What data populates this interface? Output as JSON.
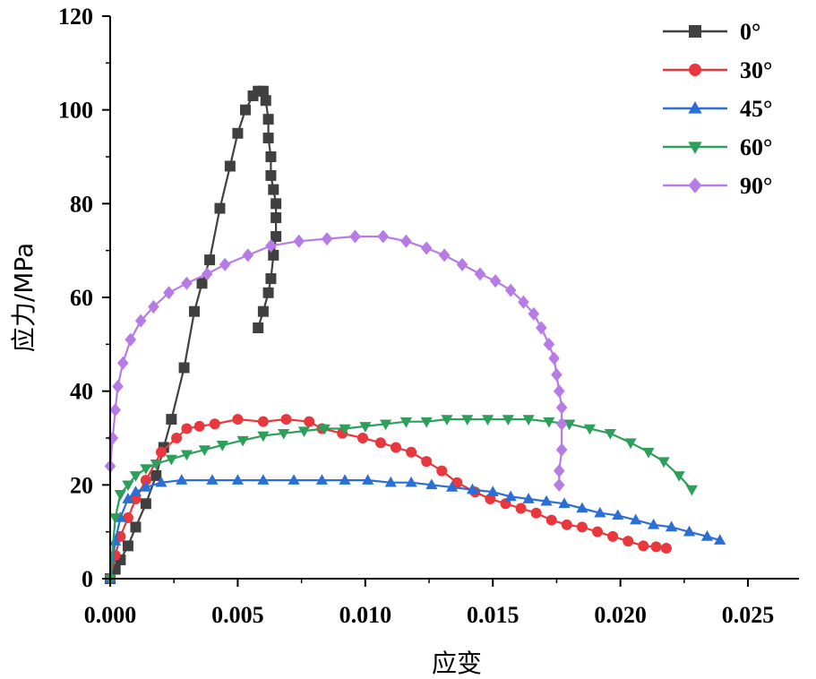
{
  "chart_data": {
    "type": "line",
    "title": "",
    "xlabel": "应变",
    "ylabel": "应力/MPa",
    "xlim": [
      0,
      0.027
    ],
    "ylim": [
      0,
      120
    ],
    "xticks": [
      0,
      0.005,
      0.01,
      0.015,
      0.02,
      0.025
    ],
    "xtick_labels": [
      "0.000",
      "0.005",
      "0.010",
      "0.015",
      "0.020",
      "0.025"
    ],
    "yticks": [
      0,
      20,
      40,
      60,
      80,
      100,
      120
    ],
    "ytick_labels": [
      "0",
      "20",
      "40",
      "60",
      "80",
      "100",
      "120"
    ],
    "legend_position": "top-right",
    "series": [
      {
        "name": "0°",
        "color": "#404040",
        "marker": "square",
        "x": [
          0.0,
          0.0002,
          0.0004,
          0.0007,
          0.001,
          0.0014,
          0.0018,
          0.0021,
          0.0024,
          0.0029,
          0.0033,
          0.0036,
          0.0039,
          0.0043,
          0.0047,
          0.005,
          0.0053,
          0.0056,
          0.0058,
          0.006,
          0.0061,
          0.0062,
          0.0062,
          0.0063,
          0.0063,
          0.0064,
          0.0065,
          0.0065,
          0.0065,
          0.0064,
          0.0063,
          0.0062,
          0.006,
          0.0058
        ],
        "y": [
          0,
          2,
          4,
          7,
          11,
          16,
          22,
          28,
          34,
          45,
          57,
          63,
          68,
          79,
          88,
          95,
          100,
          103,
          104,
          104,
          102,
          98,
          94,
          90,
          86,
          83,
          80,
          77,
          73,
          69,
          64,
          61,
          57,
          53.5
        ]
      },
      {
        "name": "30°",
        "color": "#e8373d",
        "marker": "circle",
        "x": [
          0.0,
          0.0002,
          0.0004,
          0.0007,
          0.001,
          0.0014,
          0.002,
          0.0026,
          0.003,
          0.0035,
          0.0041,
          0.005,
          0.006,
          0.0069,
          0.0078,
          0.0083,
          0.0091,
          0.0099,
          0.0106,
          0.0112,
          0.0118,
          0.0124,
          0.013,
          0.0136,
          0.0143,
          0.0149,
          0.0155,
          0.0161,
          0.0167,
          0.0173,
          0.0179,
          0.0185,
          0.0191,
          0.0197,
          0.0203,
          0.0209,
          0.0214,
          0.0218
        ],
        "y": [
          0,
          5,
          9,
          13,
          17,
          21,
          27,
          30,
          32,
          32.5,
          33,
          34,
          33.5,
          34,
          33.5,
          32,
          31,
          30,
          29,
          28,
          27,
          25,
          23,
          20.5,
          18.5,
          17,
          16,
          15,
          14,
          12.5,
          11.5,
          11,
          10,
          9,
          8,
          7,
          6.8,
          6.5
        ]
      },
      {
        "name": "45°",
        "color": "#2a6fd6",
        "marker": "triangle-up",
        "x": [
          0.0,
          0.0002,
          0.0004,
          0.0007,
          0.001,
          0.0014,
          0.002,
          0.0028,
          0.004,
          0.005,
          0.006,
          0.0072,
          0.0083,
          0.0092,
          0.0101,
          0.011,
          0.0118,
          0.0126,
          0.0134,
          0.0142,
          0.015,
          0.0157,
          0.0164,
          0.0171,
          0.0178,
          0.0185,
          0.0192,
          0.0199,
          0.0206,
          0.0213,
          0.022,
          0.0227,
          0.0234,
          0.0239
        ],
        "y": [
          0,
          8,
          13,
          17,
          18.5,
          19.5,
          20.5,
          21,
          21,
          21,
          21,
          21,
          21,
          21,
          21,
          20.5,
          20.5,
          20,
          19.5,
          19,
          18.5,
          17.5,
          17,
          16.5,
          16,
          15,
          14,
          13.5,
          12.5,
          11.5,
          11,
          10,
          9,
          8.2
        ]
      },
      {
        "name": "60°",
        "color": "#2e9e5b",
        "marker": "triangle-down",
        "x": [
          0.0,
          0.0002,
          0.0004,
          0.0007,
          0.001,
          0.0014,
          0.0018,
          0.0024,
          0.003,
          0.0037,
          0.0044,
          0.0052,
          0.006,
          0.0068,
          0.0076,
          0.0084,
          0.0092,
          0.01,
          0.0108,
          0.0116,
          0.0124,
          0.0132,
          0.014,
          0.0148,
          0.0156,
          0.0164,
          0.0172,
          0.018,
          0.0188,
          0.0196,
          0.0204,
          0.0211,
          0.0217,
          0.0223,
          0.0228
        ],
        "y": [
          0,
          13,
          18,
          20,
          22,
          23.5,
          24.5,
          25.5,
          26.5,
          27.5,
          28.5,
          29.5,
          30.5,
          31,
          31.5,
          32,
          32,
          32.5,
          33,
          33.5,
          33.5,
          34,
          34,
          34,
          34,
          34,
          33.5,
          33,
          32,
          31,
          29,
          27,
          25,
          22,
          19
        ]
      },
      {
        "name": "90°",
        "color": "#b77be5",
        "marker": "diamond",
        "x": [
          0.0,
          0.0001,
          0.0002,
          0.0003,
          0.0005,
          0.0008,
          0.0012,
          0.0017,
          0.0023,
          0.003,
          0.0038,
          0.0045,
          0.0054,
          0.0063,
          0.0074,
          0.0085,
          0.0096,
          0.0107,
          0.0116,
          0.0124,
          0.0131,
          0.0138,
          0.0145,
          0.0151,
          0.0157,
          0.0162,
          0.0166,
          0.0169,
          0.0172,
          0.0174,
          0.0175,
          0.0176,
          0.0177,
          0.0177,
          0.0177,
          0.0176,
          0.0176
        ],
        "y": [
          24,
          30,
          36,
          41,
          46,
          51,
          55,
          58,
          61,
          63,
          65,
          67,
          69,
          71,
          72,
          72.5,
          73,
          73,
          72,
          70.5,
          69,
          67,
          65,
          63.5,
          61.5,
          59,
          56.5,
          53.5,
          50,
          47,
          43.5,
          40,
          36.5,
          33,
          27.5,
          23,
          20
        ]
      }
    ]
  }
}
